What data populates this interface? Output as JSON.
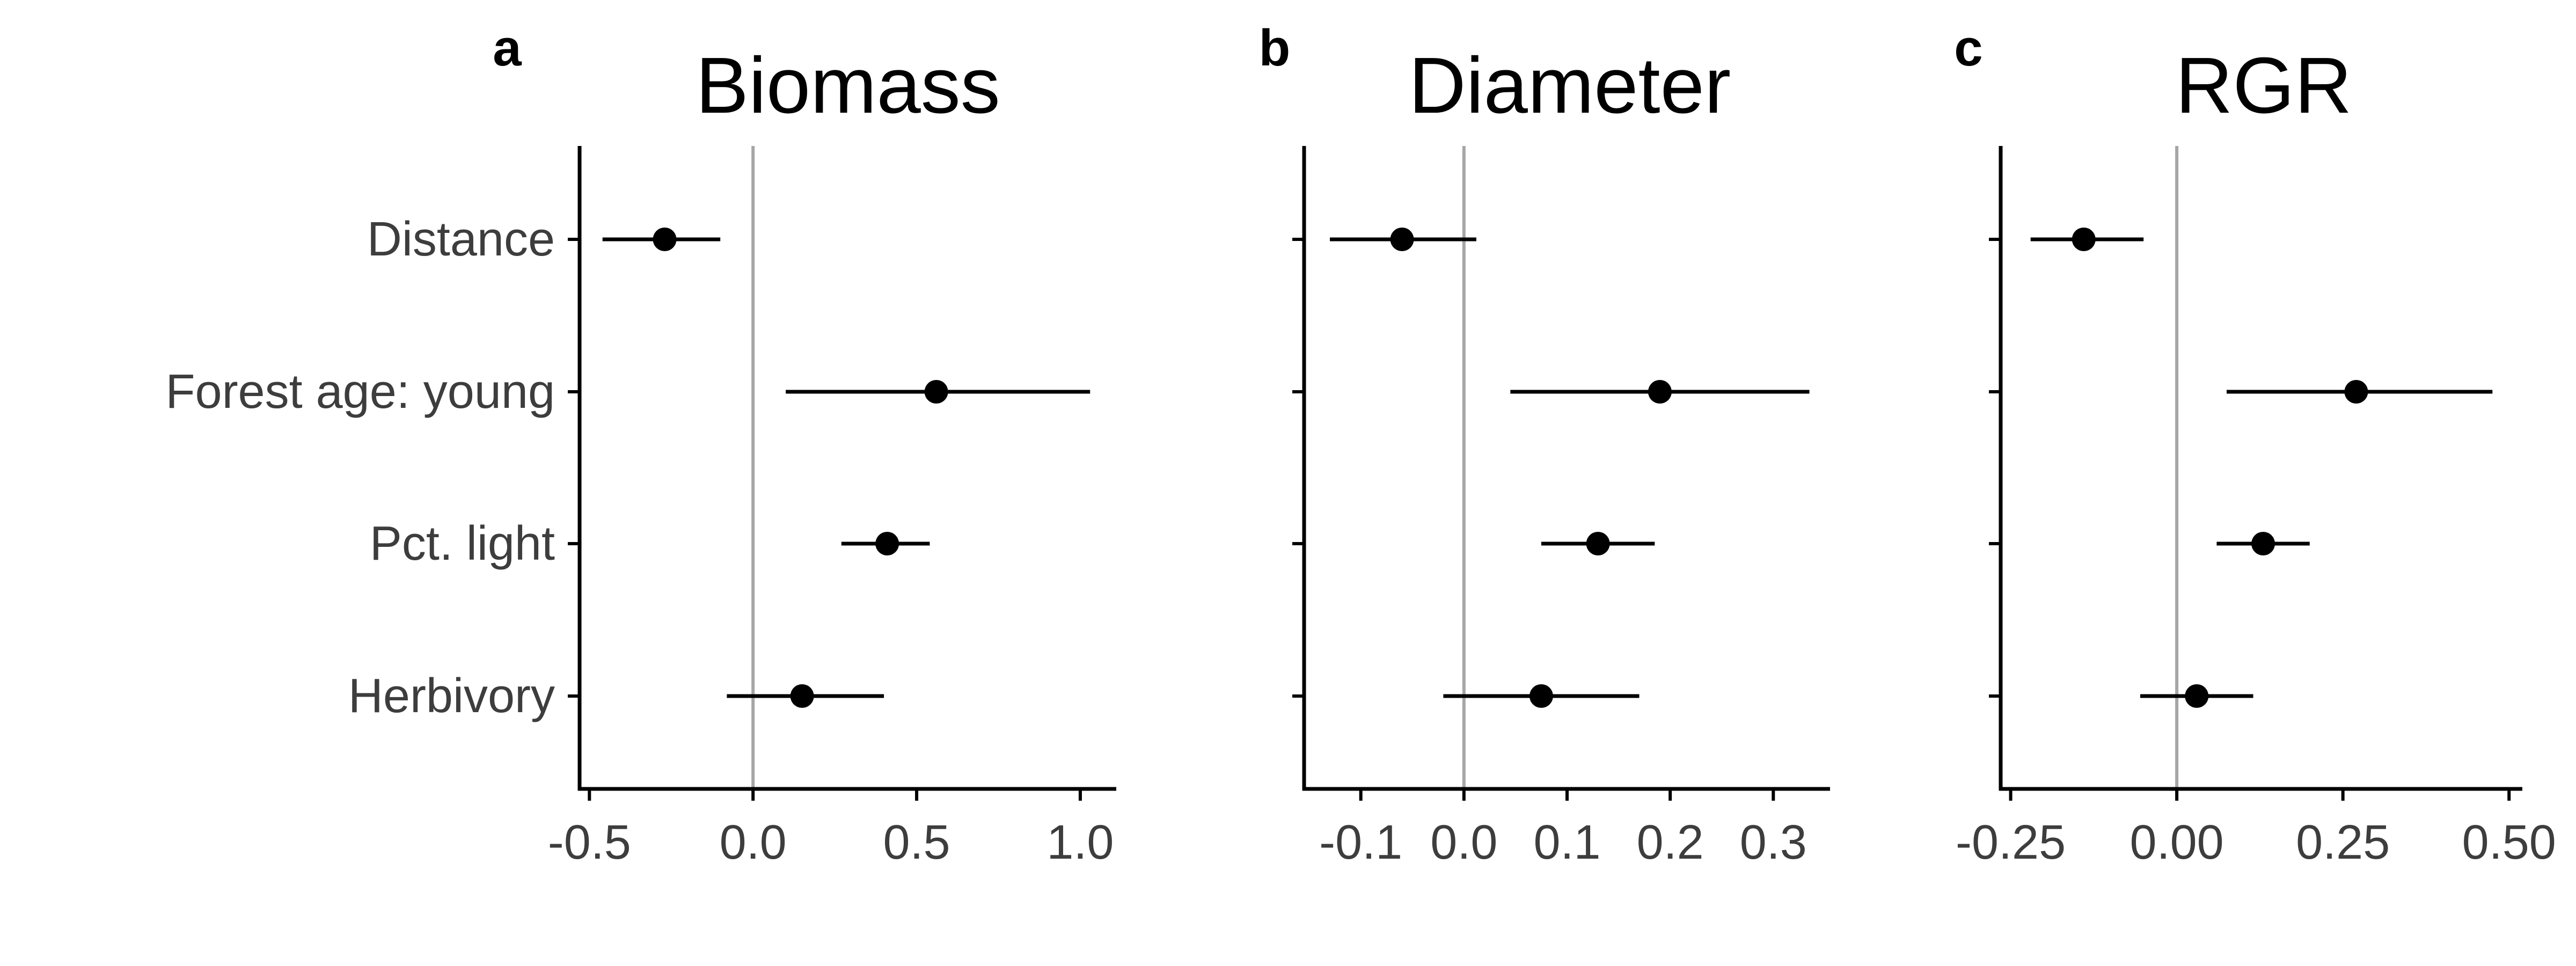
{
  "figure": {
    "categories": [
      "Distance",
      "Forest age: young",
      "Pct. light",
      "Herbivory"
    ],
    "colors": {
      "axis": "#000000",
      "zero_line": "#a6a6a6",
      "point": "#000000",
      "text": "#3d3d3d"
    }
  },
  "chart_data": [
    {
      "type": "scatter",
      "panel": "a",
      "title": "Biomass",
      "categories": [
        "Distance",
        "Forest age: young",
        "Pct. light",
        "Herbivory"
      ],
      "estimates": [
        -0.27,
        0.56,
        0.41,
        0.15
      ],
      "lower": [
        -0.46,
        0.1,
        0.27,
        -0.08
      ],
      "upper": [
        -0.1,
        1.03,
        0.54,
        0.4
      ],
      "xlim": [
        -0.53,
        1.11
      ],
      "xticks": [
        -0.5,
        0.0,
        0.5,
        1.0
      ],
      "xtick_labels": [
        "-0.5",
        "0.0",
        "0.5",
        "1.0"
      ],
      "reference_line": 0,
      "grid": false
    },
    {
      "type": "scatter",
      "panel": "b",
      "title": "Diameter",
      "categories": [
        "Distance",
        "Forest age: young",
        "Pct. light",
        "Herbivory"
      ],
      "estimates": [
        -0.06,
        0.19,
        0.13,
        0.075
      ],
      "lower": [
        -0.13,
        0.045,
        0.075,
        -0.02
      ],
      "upper": [
        0.012,
        0.335,
        0.185,
        0.17
      ],
      "xlim": [
        -0.155,
        0.355
      ],
      "xticks": [
        -0.1,
        0.0,
        0.1,
        0.2,
        0.3
      ],
      "xtick_labels": [
        "-0.1",
        "0.0",
        "0.1",
        "0.2",
        "0.3"
      ],
      "reference_line": 0,
      "grid": false
    },
    {
      "type": "scatter",
      "panel": "c",
      "title": "RGR",
      "categories": [
        "Distance",
        "Forest age: young",
        "Pct. light",
        "Herbivory"
      ],
      "estimates": [
        -0.14,
        0.27,
        0.13,
        0.03
      ],
      "lower": [
        -0.22,
        0.075,
        0.06,
        -0.055
      ],
      "upper": [
        -0.05,
        0.475,
        0.2,
        0.115
      ],
      "xlim": [
        -0.265,
        0.52
      ],
      "xticks": [
        -0.25,
        0.0,
        0.25,
        0.5
      ],
      "xtick_labels": [
        "-0.25",
        "0.00",
        "0.25",
        "0.50"
      ],
      "reference_line": 0,
      "grid": false
    }
  ]
}
